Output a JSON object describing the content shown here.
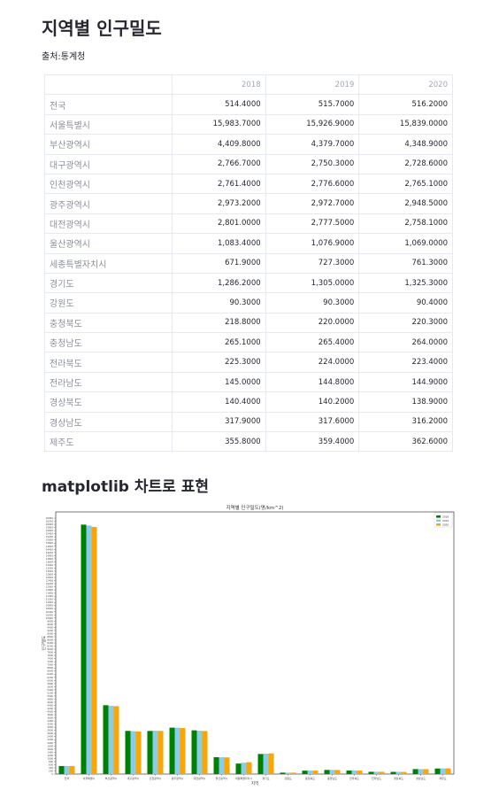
{
  "page": {
    "title": "지역별 인구밀도",
    "source": "출처:통계청",
    "section_title": "matplotlib 차트로 표현"
  },
  "table": {
    "columns": [
      "",
      "2018",
      "2019",
      "2020"
    ],
    "rows": [
      {
        "name": "전국",
        "values": [
          "514.4000",
          "515.7000",
          "516.2000"
        ]
      },
      {
        "name": "서울특별시",
        "values": [
          "15,983.7000",
          "15,926.9000",
          "15,839.0000"
        ]
      },
      {
        "name": "부산광역시",
        "values": [
          "4,409.8000",
          "4,379.7000",
          "4,348.9000"
        ]
      },
      {
        "name": "대구광역시",
        "values": [
          "2,766.7000",
          "2,750.3000",
          "2,728.6000"
        ]
      },
      {
        "name": "인천광역시",
        "values": [
          "2,761.4000",
          "2,776.6000",
          "2,765.1000"
        ]
      },
      {
        "name": "광주광역시",
        "values": [
          "2,973.2000",
          "2,972.7000",
          "2,948.5000"
        ]
      },
      {
        "name": "대전광역시",
        "values": [
          "2,801.0000",
          "2,777.5000",
          "2,758.1000"
        ]
      },
      {
        "name": "울산광역시",
        "values": [
          "1,083.4000",
          "1,076.9000",
          "1,069.0000"
        ]
      },
      {
        "name": "세종특별자치시",
        "values": [
          "671.9000",
          "727.3000",
          "761.3000"
        ]
      },
      {
        "name": "경기도",
        "values": [
          "1,286.2000",
          "1,305.0000",
          "1,325.3000"
        ]
      },
      {
        "name": "강원도",
        "values": [
          "90.3000",
          "90.3000",
          "90.4000"
        ]
      },
      {
        "name": "충청북도",
        "values": [
          "218.8000",
          "220.0000",
          "220.3000"
        ]
      },
      {
        "name": "충청남도",
        "values": [
          "265.1000",
          "265.4000",
          "264.0000"
        ]
      },
      {
        "name": "전라북도",
        "values": [
          "225.3000",
          "224.0000",
          "223.4000"
        ]
      },
      {
        "name": "전라남도",
        "values": [
          "145.0000",
          "144.8000",
          "144.9000"
        ]
      },
      {
        "name": "경상북도",
        "values": [
          "140.4000",
          "140.2000",
          "138.9000"
        ]
      },
      {
        "name": "경상남도",
        "values": [
          "317.9000",
          "317.6000",
          "316.2000"
        ]
      },
      {
        "name": "제주도",
        "values": [
          "355.8000",
          "359.4000",
          "362.6000"
        ]
      }
    ]
  },
  "chart_data": {
    "type": "bar",
    "title": "지역별 인구밀도(명/km^2)",
    "xlabel": "지역",
    "ylabel": "인구밀도",
    "categories": [
      "전국",
      "서울특별시",
      "부산광역시",
      "대구광역시",
      "인천광역시",
      "광주광역시",
      "대전광역시",
      "울산광역시",
      "세종특별자치시",
      "경기도",
      "강원도",
      "충청북도",
      "충청남도",
      "전라북도",
      "전라남도",
      "경상북도",
      "경상남도",
      "제주도"
    ],
    "series": [
      {
        "name": "2018",
        "color": "#008000",
        "values": [
          514.4,
          15983.7,
          4409.8,
          2766.7,
          2761.4,
          2973.2,
          2801.0,
          1083.4,
          671.9,
          1286.2,
          90.3,
          218.8,
          265.1,
          225.3,
          145.0,
          140.4,
          317.9,
          355.8
        ]
      },
      {
        "name": "2019",
        "color": "#87ceeb",
        "values": [
          515.7,
          15926.9,
          4379.7,
          2750.3,
          2776.6,
          2972.7,
          2777.5,
          1076.9,
          727.3,
          1305.0,
          90.3,
          220.0,
          265.4,
          224.0,
          144.8,
          140.2,
          317.6,
          359.4
        ]
      },
      {
        "name": "2020",
        "color": "#ffa500",
        "values": [
          516.2,
          15839.0,
          4348.9,
          2728.6,
          2765.1,
          2948.5,
          2758.1,
          1069.0,
          761.3,
          1325.3,
          90.4,
          220.3,
          264.0,
          223.4,
          144.9,
          138.9,
          316.2,
          362.6
        ]
      }
    ],
    "ylim": [
      0,
      16800
    ],
    "ytick_step": 200,
    "grid": false,
    "legend": "top-right"
  }
}
